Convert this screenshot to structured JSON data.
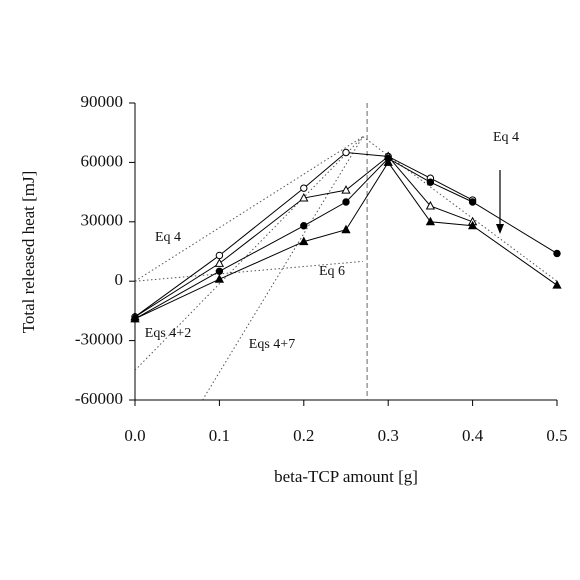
{
  "chart_data": {
    "type": "line",
    "y_label": "Total released heat [mJ]",
    "x_label": "beta-TCP amount [g]",
    "x": [
      0,
      0.1,
      0.2,
      0.25,
      0.3,
      0.35,
      0.4,
      0.5
    ],
    "xlim": [
      0,
      0.5
    ],
    "xticks": [
      {
        "value": 0,
        "label": "0.0"
      },
      0.1,
      0.2,
      0.3,
      0.4,
      0.5
    ],
    "ylim": [
      -60000,
      90000
    ],
    "yticks": [
      -60000,
      -30000,
      0,
      30000,
      60000,
      90000
    ],
    "series": [
      {
        "marker": "circle",
        "filled": false,
        "color": "#000000",
        "values": [
          -18000,
          13000,
          47000,
          65000,
          63000,
          52000,
          41000,
          null
        ]
      },
      {
        "marker": "triangle",
        "filled": false,
        "color": "#000000",
        "values": [
          -18000,
          9000,
          42000,
          46000,
          63000,
          38000,
          30000,
          null
        ]
      },
      {
        "marker": "circle",
        "filled": true,
        "color": "#000000",
        "values": [
          -19000,
          5000,
          28000,
          40000,
          62000,
          50000,
          40000,
          14000
        ]
      },
      {
        "marker": "triangle",
        "filled": true,
        "color": "#000000",
        "values": [
          -19000,
          1000,
          20000,
          26000,
          60000,
          30000,
          28000,
          -2000
        ]
      }
    ],
    "model_lines": [
      {
        "x": [
          0,
          0.27
        ],
        "values": [
          0,
          73000
        ]
      },
      {
        "x": [
          0.27,
          0.5
        ],
        "values": [
          73000,
          0
        ]
      },
      {
        "x": [
          0,
          0.27
        ],
        "values": [
          -45000,
          73000
        ]
      },
      {
        "x": [
          0.08,
          0.27
        ],
        "values": [
          -60000,
          73000
        ]
      },
      {
        "x": [
          0,
          0.27
        ],
        "values": [
          0,
          10000
        ]
      }
    ],
    "vline": 0.275,
    "annotations": [
      "Eq 4",
      "Eq 4",
      "Eq 6",
      "Eqs 4+2",
      "Eqs 4+7"
    ]
  }
}
